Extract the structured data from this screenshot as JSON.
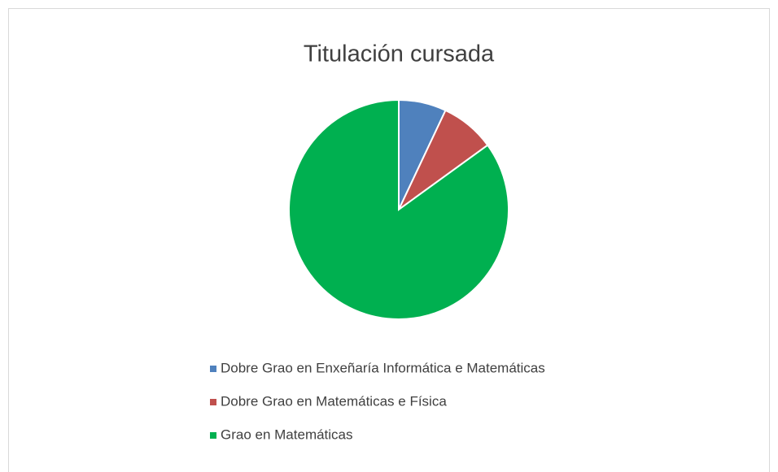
{
  "chart_data": {
    "type": "pie",
    "title": "Titulación cursada",
    "categories": [
      "Dobre Grao en Enxeñaría Informática e Matemáticas",
      "Dobre Grao en Matemáticas e Física",
      "Grao en Matemáticas"
    ],
    "values": [
      7,
      8,
      85
    ],
    "colors": [
      "#4f81bd",
      "#c0504d",
      "#00b050"
    ],
    "legend": "bottom"
  }
}
